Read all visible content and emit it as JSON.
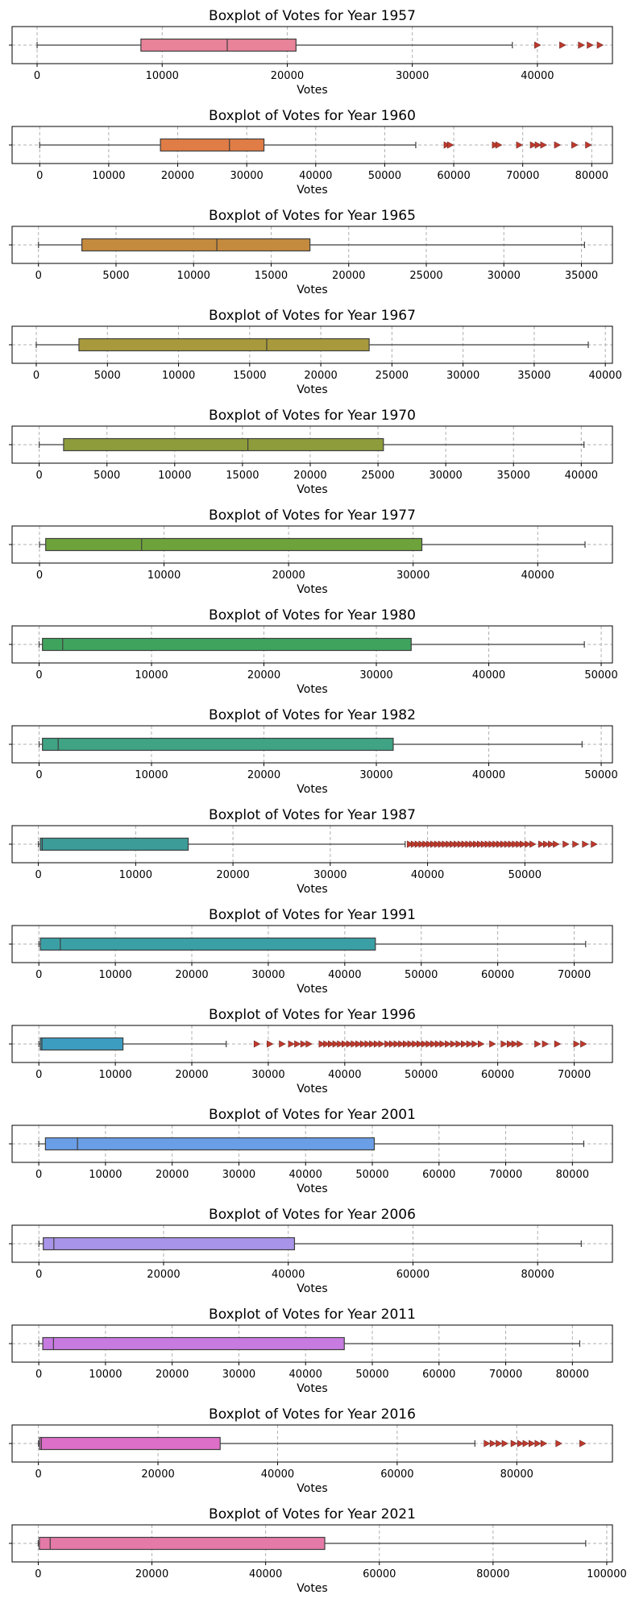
{
  "chart_data": [
    {
      "type": "boxplot",
      "title": "Boxplot of Votes for Year 1957",
      "xlabel": "Votes",
      "color": "#e8839a",
      "xlim": [
        -2000,
        46000
      ],
      "ticks": [
        0,
        10000,
        20000,
        30000,
        40000
      ],
      "tick_labels": [
        "0",
        "10000",
        "20000",
        "30000",
        "40000"
      ],
      "box": {
        "whisker_low": 0,
        "q1": 8300,
        "median": 15200,
        "q3": 20700,
        "whisker_high": 38000
      },
      "outliers": [
        40000,
        42000,
        43500,
        44200,
        45000
      ]
    },
    {
      "type": "boxplot",
      "title": "Boxplot of Votes for Year 1960",
      "xlabel": "Votes",
      "color": "#e07c46",
      "xlim": [
        -4000,
        83000
      ],
      "ticks": [
        0,
        10000,
        20000,
        30000,
        40000,
        50000,
        60000,
        70000,
        80000
      ],
      "tick_labels": [
        "0",
        "10000",
        "20000",
        "30000",
        "40000",
        "50000",
        "60000",
        "70000",
        "80000"
      ],
      "box": {
        "whisker_low": 0,
        "q1": 17500,
        "median": 27500,
        "q3": 32500,
        "whisker_high": 54500
      },
      "outliers": [
        59000,
        59500,
        66000,
        66500,
        69500,
        71500,
        72200,
        73000,
        75000,
        77500,
        79500
      ]
    },
    {
      "type": "boxplot",
      "title": "Boxplot of Votes for Year 1965",
      "xlabel": "Votes",
      "color": "#c48a3d",
      "xlim": [
        -1700,
        37000
      ],
      "ticks": [
        0,
        5000,
        10000,
        15000,
        20000,
        25000,
        30000,
        35000
      ],
      "tick_labels": [
        "0",
        "5000",
        "10000",
        "15000",
        "20000",
        "25000",
        "30000",
        "35000"
      ],
      "box": {
        "whisker_low": 0,
        "q1": 2800,
        "median": 11500,
        "q3": 17500,
        "whisker_high": 35200
      },
      "outliers": []
    },
    {
      "type": "boxplot",
      "title": "Boxplot of Votes for Year 1967",
      "xlabel": "Votes",
      "color": "#a89a3c",
      "xlim": [
        -1700,
        40500
      ],
      "ticks": [
        0,
        5000,
        10000,
        15000,
        20000,
        25000,
        30000,
        35000,
        40000
      ],
      "tick_labels": [
        "0",
        "5000",
        "10000",
        "15000",
        "20000",
        "25000",
        "30000",
        "35000",
        "40000"
      ],
      "box": {
        "whisker_low": 0,
        "q1": 3000,
        "median": 16200,
        "q3": 23400,
        "whisker_high": 38800
      },
      "outliers": []
    },
    {
      "type": "boxplot",
      "title": "Boxplot of Votes for Year 1970",
      "xlabel": "Votes",
      "color": "#8e9c3b",
      "xlim": [
        -2000,
        42300
      ],
      "ticks": [
        0,
        5000,
        10000,
        15000,
        20000,
        25000,
        30000,
        35000,
        40000
      ],
      "tick_labels": [
        "0",
        "5000",
        "10000",
        "15000",
        "20000",
        "25000",
        "30000",
        "35000",
        "40000"
      ],
      "box": {
        "whisker_low": 0,
        "q1": 1800,
        "median": 15400,
        "q3": 25400,
        "whisker_high": 40200
      },
      "outliers": []
    },
    {
      "type": "boxplot",
      "title": "Boxplot of Votes for Year 1977",
      "xlabel": "Votes",
      "color": "#6ea33b",
      "xlim": [
        -2200,
        46000
      ],
      "ticks": [
        0,
        10000,
        20000,
        30000,
        40000
      ],
      "tick_labels": [
        "0",
        "10000",
        "20000",
        "30000",
        "40000"
      ],
      "box": {
        "whisker_low": 0,
        "q1": 500,
        "median": 8200,
        "q3": 30700,
        "whisker_high": 43800
      },
      "outliers": []
    },
    {
      "type": "boxplot",
      "title": "Boxplot of Votes for Year 1980",
      "xlabel": "Votes",
      "color": "#3fa35e",
      "xlim": [
        -2400,
        51000
      ],
      "ticks": [
        0,
        10000,
        20000,
        30000,
        40000,
        50000
      ],
      "tick_labels": [
        "0",
        "10000",
        "20000",
        "30000",
        "40000",
        "50000"
      ],
      "box": {
        "whisker_low": 0,
        "q1": 300,
        "median": 2100,
        "q3": 33100,
        "whisker_high": 48500
      },
      "outliers": []
    },
    {
      "type": "boxplot",
      "title": "Boxplot of Votes for Year 1982",
      "xlabel": "Votes",
      "color": "#3fa384",
      "xlim": [
        -2400,
        51000
      ],
      "ticks": [
        0,
        10000,
        20000,
        30000,
        40000,
        50000
      ],
      "tick_labels": [
        "0",
        "10000",
        "20000",
        "30000",
        "40000",
        "50000"
      ],
      "box": {
        "whisker_low": 0,
        "q1": 300,
        "median": 1700,
        "q3": 31500,
        "whisker_high": 48300
      },
      "outliers": []
    },
    {
      "type": "boxplot",
      "title": "Boxplot of Votes for Year 1987",
      "xlabel": "Votes",
      "color": "#3c9c98",
      "xlim": [
        -2700,
        59000
      ],
      "ticks": [
        0,
        10000,
        20000,
        30000,
        40000,
        50000
      ],
      "tick_labels": [
        "0",
        "10000",
        "20000",
        "30000",
        "40000",
        "50000"
      ],
      "box": {
        "whisker_low": 0,
        "q1": 200,
        "median": 400,
        "q3": 15400,
        "whisker_high": 37700
      },
      "outliers": [
        38200,
        38600,
        39000,
        39400,
        39800,
        40200,
        40600,
        41000,
        41400,
        41800,
        42200,
        42600,
        43000,
        43400,
        43800,
        44200,
        44600,
        45000,
        45400,
        45800,
        46200,
        46600,
        47000,
        47400,
        47800,
        48200,
        48600,
        49000,
        49400,
        49800,
        50300,
        50800,
        51700,
        52200,
        52700,
        53200,
        54200,
        55200,
        56200,
        57100
      ]
    },
    {
      "type": "boxplot",
      "title": "Boxplot of Votes for Year 1991",
      "xlabel": "Votes",
      "color": "#3aa0a6",
      "xlim": [
        -3500,
        75000
      ],
      "ticks": [
        0,
        10000,
        20000,
        30000,
        40000,
        50000,
        60000,
        70000
      ],
      "tick_labels": [
        "0",
        "10000",
        "20000",
        "30000",
        "40000",
        "50000",
        "60000",
        "70000"
      ],
      "box": {
        "whisker_low": 0,
        "q1": 200,
        "median": 2800,
        "q3": 44000,
        "whisker_high": 71500
      },
      "outliers": []
    },
    {
      "type": "boxplot",
      "title": "Boxplot of Votes for Year 1996",
      "xlabel": "Votes",
      "color": "#3d9dc1",
      "xlim": [
        -3500,
        75000
      ],
      "ticks": [
        0,
        10000,
        20000,
        30000,
        40000,
        50000,
        60000,
        70000
      ],
      "tick_labels": [
        "0",
        "10000",
        "20000",
        "30000",
        "40000",
        "50000",
        "60000",
        "70000"
      ],
      "box": {
        "whisker_low": 0,
        "q1": 200,
        "median": 400,
        "q3": 11000,
        "whisker_high": 24500
      },
      "outliers": [
        28500,
        30200,
        31800,
        33000,
        33800,
        34600,
        35300,
        37000,
        37600,
        38200,
        38800,
        39400,
        40000,
        40600,
        41200,
        41800,
        42400,
        43000,
        43600,
        44200,
        44800,
        45600,
        46200,
        46800,
        47400,
        48000,
        48600,
        49200,
        49800,
        50400,
        51000,
        51600,
        52200,
        52800,
        53500,
        54200,
        54900,
        55600,
        56300,
        57000,
        57800,
        59300,
        60800,
        61600,
        62200,
        62900,
        65200,
        66200,
        67800,
        70300,
        71200
      ]
    },
    {
      "type": "boxplot",
      "title": "Boxplot of Votes for Year 2001",
      "xlabel": "Votes",
      "color": "#6a9ee6",
      "xlim": [
        -4000,
        86000
      ],
      "ticks": [
        0,
        10000,
        20000,
        30000,
        40000,
        50000,
        60000,
        70000,
        80000
      ],
      "tick_labels": [
        "0",
        "10000",
        "20000",
        "30000",
        "40000",
        "50000",
        "60000",
        "70000",
        "80000"
      ],
      "box": {
        "whisker_low": 0,
        "q1": 1000,
        "median": 5800,
        "q3": 50300,
        "whisker_high": 81700
      },
      "outliers": []
    },
    {
      "type": "boxplot",
      "title": "Boxplot of Votes for Year 2006",
      "xlabel": "Votes",
      "color": "#a894e8",
      "xlim": [
        -4300,
        92000
      ],
      "ticks": [
        0,
        20000,
        40000,
        60000,
        80000
      ],
      "tick_labels": [
        "0",
        "20000",
        "40000",
        "60000",
        "80000"
      ],
      "box": {
        "whisker_low": 0,
        "q1": 700,
        "median": 2400,
        "q3": 41000,
        "whisker_high": 87000
      },
      "outliers": []
    },
    {
      "type": "boxplot",
      "title": "Boxplot of Votes for Year 2011",
      "xlabel": "Votes",
      "color": "#c77be0",
      "xlim": [
        -4000,
        86000
      ],
      "ticks": [
        0,
        10000,
        20000,
        30000,
        40000,
        50000,
        60000,
        70000,
        80000
      ],
      "tick_labels": [
        "0",
        "10000",
        "20000",
        "30000",
        "40000",
        "50000",
        "60000",
        "70000",
        "80000"
      ],
      "box": {
        "whisker_low": 0,
        "q1": 600,
        "median": 2200,
        "q3": 45800,
        "whisker_high": 81100
      },
      "outliers": []
    },
    {
      "type": "boxplot",
      "title": "Boxplot of Votes for Year 2016",
      "xlabel": "Votes",
      "color": "#dd6fc8",
      "xlim": [
        -4400,
        96000
      ],
      "ticks": [
        0,
        20000,
        40000,
        60000,
        80000
      ],
      "tick_labels": [
        "0",
        "20000",
        "40000",
        "60000",
        "80000"
      ],
      "box": {
        "whisker_low": 0,
        "q1": 200,
        "median": 500,
        "q3": 30400,
        "whisker_high": 73000
      },
      "outliers": [
        75000,
        76000,
        77000,
        78000,
        79500,
        80600,
        81500,
        82500,
        83500,
        84500,
        87000,
        91000
      ]
    },
    {
      "type": "boxplot",
      "title": "Boxplot of Votes for Year 2021",
      "xlabel": "Votes",
      "color": "#e47aa8",
      "xlim": [
        -4600,
        101000
      ],
      "ticks": [
        0,
        20000,
        40000,
        60000,
        80000,
        100000
      ],
      "tick_labels": [
        "0",
        "20000",
        "40000",
        "60000",
        "80000",
        "100000"
      ],
      "box": {
        "whisker_low": 0,
        "q1": 200,
        "median": 2100,
        "q3": 50400,
        "whisker_high": 96300
      },
      "outliers": []
    }
  ]
}
